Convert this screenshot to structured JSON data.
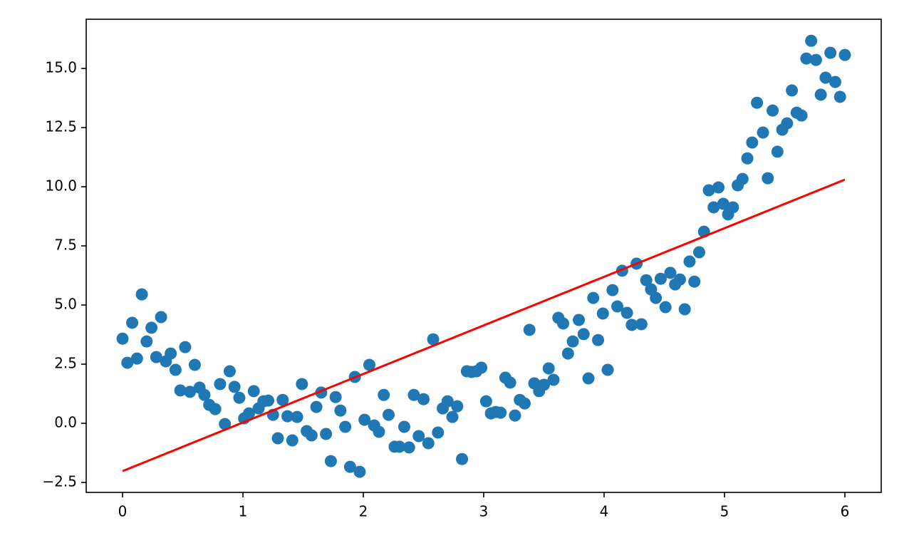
{
  "chart_data": {
    "type": "scatter",
    "xlim": [
      -0.302,
      6.302
    ],
    "ylim": [
      -2.92,
      17.08
    ],
    "xticks": [
      0,
      1,
      2,
      3,
      4,
      5,
      6
    ],
    "yticks": [
      {
        "value": -2.5,
        "label": "−2.5"
      },
      {
        "value": 0,
        "label": "0.0"
      },
      2.5,
      {
        "value": 5,
        "label": "5.0"
      },
      7.5,
      {
        "value": 10,
        "label": "10.0"
      },
      12.5,
      {
        "value": 15,
        "label": "15.0"
      }
    ],
    "grid": false,
    "series": [
      {
        "type": "scatter",
        "color": "#1f77b4",
        "x": [
          0,
          0.04,
          0.08,
          0.12,
          0.16,
          0.2,
          0.24,
          0.28,
          0.32,
          0.36,
          0.4,
          0.44,
          0.48,
          0.52,
          0.56,
          0.6,
          0.64,
          0.68,
          0.72,
          0.77,
          0.81,
          0.85,
          0.89,
          0.93,
          0.97,
          1.01,
          1.05,
          1.09,
          1.13,
          1.17,
          1.21,
          1.25,
          1.29,
          1.33,
          1.37,
          1.41,
          1.45,
          1.49,
          1.53,
          1.57,
          1.61,
          1.65,
          1.69,
          1.73,
          1.77,
          1.81,
          1.85,
          1.89,
          1.93,
          1.97,
          2.01,
          2.05,
          2.09,
          2.13,
          2.17,
          2.21,
          2.26,
          2.3,
          2.34,
          2.38,
          2.42,
          2.46,
          2.5,
          2.54,
          2.58,
          2.62,
          2.66,
          2.7,
          2.74,
          2.78,
          2.82,
          2.86,
          2.9,
          2.94,
          2.98,
          3.02,
          3.06,
          3.1,
          3.14,
          3.18,
          3.22,
          3.26,
          3.3,
          3.34,
          3.38,
          3.42,
          3.46,
          3.5,
          3.54,
          3.58,
          3.62,
          3.66,
          3.7,
          3.74,
          3.79,
          3.83,
          3.87,
          3.91,
          3.95,
          3.99,
          4.03,
          4.07,
          4.11,
          4.15,
          4.19,
          4.23,
          4.27,
          4.31,
          4.35,
          4.39,
          4.43,
          4.47,
          4.51,
          4.55,
          4.59,
          4.63,
          4.67,
          4.71,
          4.75,
          4.79,
          4.83,
          4.87,
          4.91,
          4.95,
          4.99,
          5.03,
          5.07,
          5.11,
          5.15,
          5.19,
          5.23,
          5.27,
          5.32,
          5.36,
          5.4,
          5.44,
          5.48,
          5.52,
          5.56,
          5.6,
          5.64,
          5.68,
          5.72,
          5.76,
          5.8,
          5.84,
          5.88,
          5.92,
          5.96,
          6.0
        ],
        "values": [
          3.58,
          2.56,
          4.25,
          2.74,
          5.45,
          3.46,
          4.04,
          2.8,
          4.49,
          2.62,
          2.95,
          2.26,
          1.39,
          3.22,
          1.33,
          2.47,
          1.51,
          1.2,
          0.78,
          0.6,
          1.66,
          -0.03,
          2.2,
          1.54,
          1.08,
          0.21,
          0.42,
          1.36,
          0.63,
          0.93,
          0.96,
          0.36,
          -0.63,
          0.99,
          0.3,
          -0.72,
          0.27,
          1.66,
          -0.33,
          -0.51,
          0.69,
          1.3,
          -0.45,
          -1.6,
          1.11,
          0.54,
          -0.15,
          -1.84,
          1.96,
          -2.05,
          0.15,
          2.47,
          -0.09,
          -0.36,
          1.2,
          0.36,
          -0.99,
          -0.99,
          -0.15,
          -1.02,
          1.2,
          -0.54,
          1.02,
          -0.84,
          3.55,
          -0.39,
          0.63,
          0.93,
          0.27,
          0.72,
          -1.51,
          2.2,
          2.17,
          2.2,
          2.35,
          0.93,
          0.42,
          0.48,
          0.45,
          1.93,
          1.72,
          0.33,
          0.99,
          0.84,
          3.95,
          1.69,
          1.36,
          1.63,
          2.32,
          1.84,
          4.46,
          4.22,
          2.95,
          3.46,
          4.37,
          3.77,
          1.9,
          5.3,
          3.52,
          4.64,
          2.26,
          5.63,
          4.94,
          6.45,
          4.67,
          4.16,
          6.75,
          4.19,
          6.05,
          5.66,
          5.3,
          6.11,
          4.91,
          6.36,
          5.87,
          6.08,
          4.82,
          6.84,
          5.99,
          7.23,
          8.1,
          9.85,
          9.13,
          9.97,
          9.28,
          8.83,
          9.13,
          10.06,
          10.33,
          11.2,
          11.87,
          13.55,
          12.29,
          10.36,
          13.22,
          11.48,
          12.41,
          12.68,
          14.07,
          13.13,
          13.01,
          15.42,
          16.17,
          15.36,
          13.89,
          14.61,
          15.66,
          14.43,
          13.8,
          15.57
        ]
      },
      {
        "type": "line",
        "color": "#ff0000",
        "x": [
          0,
          6
        ],
        "values": [
          -2.02,
          10.3
        ]
      }
    ]
  }
}
